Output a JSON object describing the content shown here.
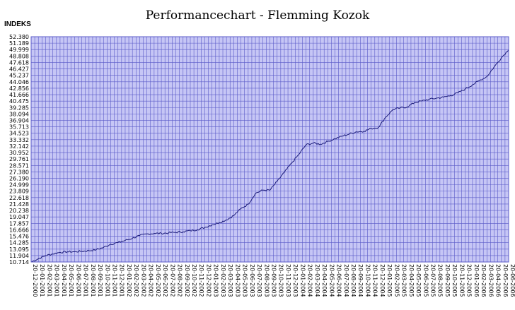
{
  "chart_data": {
    "type": "line",
    "title": "Performancechart - Flemming Kozok",
    "ylabel": "INDEKS",
    "xlabel": "",
    "ylim": [
      10.714,
      52.38
    ],
    "y_ticks": [
      "52.380",
      "51.189",
      "49.999",
      "48.808",
      "47.618",
      "46.427",
      "45.237",
      "44.046",
      "42.856",
      "41.666",
      "40.475",
      "39.285",
      "38.094",
      "36.904",
      "35.713",
      "34.523",
      "33.332",
      "32.142",
      "30.952",
      "29.761",
      "28.571",
      "27.380",
      "26.190",
      "24.999",
      "23.809",
      "22.618",
      "21.428",
      "20.238",
      "19.047",
      "17.857",
      "16.666",
      "15.476",
      "14.285",
      "13.095",
      "11.904",
      "10.714"
    ],
    "x_ticks": [
      "20-12-2000",
      "20-01-2001",
      "20-02-2001",
      "20-03-2001",
      "20-04-2001",
      "20-05-2001",
      "20-06-2001",
      "20-07-2001",
      "20-08-2001",
      "20-09-2001",
      "20-10-2001",
      "20-11-2001",
      "20-12-2001",
      "20-01-2002",
      "20-02-2002",
      "20-03-2002",
      "20-04-2002",
      "20-05-2002",
      "20-06-2002",
      "20-07-2002",
      "20-08-2002",
      "20-09-2002",
      "20-10-2002",
      "20-11-2002",
      "20-12-2002",
      "20-01-2003",
      "20-02-2003",
      "20-03-2003",
      "20-04-2003",
      "20-05-2003",
      "20-06-2003",
      "20-07-2003",
      "20-08-2003",
      "20-09-2003",
      "20-10-2003",
      "20-11-2003",
      "20-12-2003",
      "20-01-2004",
      "20-02-2004",
      "20-03-2004",
      "20-04-2004",
      "20-05-2004",
      "20-06-2004",
      "20-07-2004",
      "20-08-2004",
      "20-09-2004",
      "20-10-2004",
      "20-11-2004",
      "20-12-2004",
      "20-01-2005",
      "20-02-2005",
      "20-03-2005",
      "20-04-2005",
      "20-05-2005",
      "20-06-2005",
      "20-07-2005",
      "20-08-2005",
      "20-09-2005",
      "20-10-2005",
      "20-11-2005",
      "20-12-2005",
      "20-01-2006",
      "20-02-2006",
      "20-03-2006",
      "20-04-2006",
      "20-05-2006",
      "20-06-2006"
    ],
    "grid": true,
    "colors": {
      "plot_bg": "#c6c6f5",
      "grid": "#5a5ac8",
      "line": "#1a1a7a",
      "border": "#5a5ac8"
    },
    "series": [
      {
        "x": [
          "20-12-2000",
          "20-01-2001",
          "20-02-2001",
          "20-03-2001",
          "20-04-2001",
          "20-05-2001",
          "20-06-2001",
          "20-07-2001",
          "20-08-2001",
          "20-09-2001",
          "20-10-2001",
          "20-11-2001",
          "20-12-2001",
          "20-01-2002",
          "20-02-2002",
          "20-03-2002",
          "20-04-2002",
          "20-05-2002",
          "20-06-2002",
          "20-07-2002",
          "20-08-2002",
          "20-09-2002",
          "20-10-2002",
          "20-11-2002",
          "20-12-2002",
          "20-01-2003",
          "20-02-2003",
          "20-03-2003",
          "20-04-2003",
          "20-05-2003",
          "20-06-2003",
          "20-07-2003",
          "20-08-2003",
          "20-09-2003",
          "20-10-2003",
          "20-11-2003",
          "20-12-2003",
          "20-01-2004",
          "20-02-2004",
          "20-03-2004",
          "20-04-2004",
          "20-05-2004",
          "20-06-2004",
          "20-07-2004",
          "20-08-2004",
          "20-09-2004",
          "20-10-2004",
          "20-11-2004",
          "20-12-2004",
          "20-01-2005",
          "20-02-2005",
          "20-03-2005",
          "20-04-2005",
          "20-05-2005",
          "20-06-2005",
          "20-07-2005",
          "20-08-2005",
          "20-09-2005",
          "20-10-2005",
          "20-11-2005",
          "20-12-2005",
          "20-01-2006",
          "20-02-2006",
          "20-03-2006",
          "20-04-2006",
          "20-05-2006",
          "20-06-2006"
        ],
        "values": [
          10.714,
          11.3,
          11.9,
          12.2,
          12.5,
          12.6,
          12.6,
          12.7,
          12.8,
          13.0,
          13.4,
          14.0,
          14.3,
          14.7,
          15.1,
          15.6,
          15.9,
          16.0,
          16.0,
          16.1,
          16.2,
          16.3,
          16.5,
          16.7,
          17.1,
          17.6,
          18.0,
          18.5,
          19.3,
          20.6,
          21.4,
          23.4,
          24.0,
          24.0,
          25.6,
          27.3,
          29.0,
          30.6,
          32.4,
          32.7,
          32.5,
          33.0,
          33.5,
          34.0,
          34.4,
          34.8,
          34.9,
          35.4,
          35.6,
          37.5,
          38.9,
          39.2,
          39.4,
          40.2,
          40.5,
          40.8,
          41.0,
          41.2,
          41.5,
          42.0,
          42.7,
          43.5,
          44.3,
          45.0,
          46.8,
          48.5,
          50.0
        ]
      }
    ]
  }
}
